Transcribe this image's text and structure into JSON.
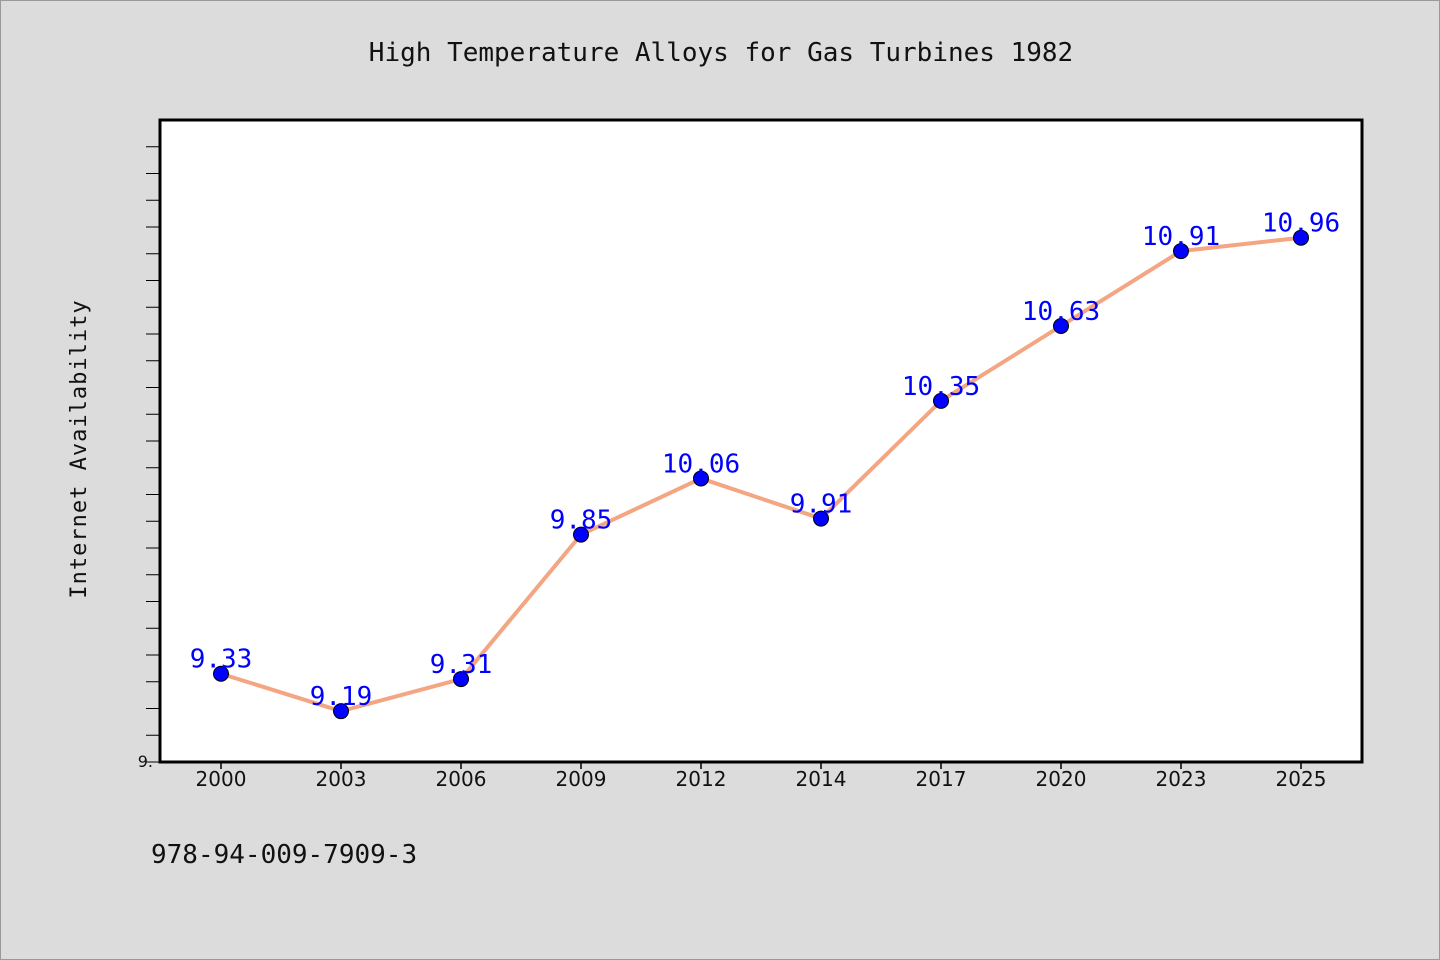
{
  "chart_data": {
    "type": "line",
    "title": "High Temperature Alloys for Gas Turbines 1982",
    "xlabel": "",
    "ylabel": "Internet Availability",
    "categories": [
      "2000",
      "2003",
      "2006",
      "2009",
      "2012",
      "2014",
      "2017",
      "2020",
      "2023",
      "2025"
    ],
    "series": [
      {
        "values": [
          9.33,
          9.19,
          9.31,
          9.85,
          10.06,
          9.91,
          10.35,
          10.63,
          10.91,
          10.96
        ]
      }
    ],
    "data_labels": [
      "9.33",
      "9.19",
      "9.31",
      "9.85",
      "10.06",
      "9.91",
      "10.35",
      "10.63",
      "10.91",
      "10.96"
    ],
    "ylim": [
      9.0,
      11.4
    ],
    "ytick_label": "9.",
    "grid": false,
    "legend": "none",
    "colors": {
      "line": "#f4a582",
      "marker": "#0000ff",
      "marker_edge": "#000000",
      "data_label": "#0000ff",
      "plot_bg": "#ffffff",
      "figure_bg": "#dcdcdc"
    }
  },
  "footer": {
    "isbn": "978-94-009-7909-3"
  }
}
